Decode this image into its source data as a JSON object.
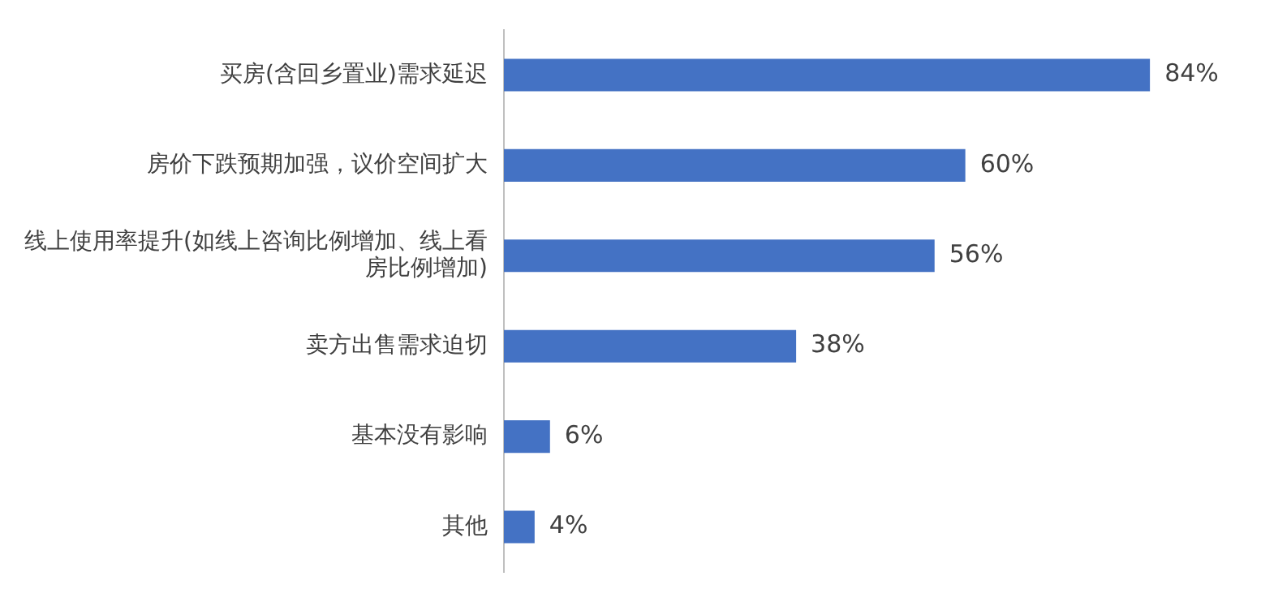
{
  "chart_data": {
    "type": "bar",
    "orientation": "horizontal",
    "categories": [
      "买房(含回乡置业)需求延迟",
      "房价下跌预期加强，议价空间扩大",
      "线上使用率提升(如线上咨询比例增加、线上看房比例增加)",
      "卖方出售需求迫切",
      "基本没有影响",
      "其他"
    ],
    "values": [
      84,
      60,
      56,
      38,
      6,
      4
    ],
    "value_labels": [
      "84%",
      "60%",
      "56%",
      "38%",
      "6%",
      "4%"
    ],
    "color": "#4472c4",
    "grid": false,
    "legend": false
  }
}
